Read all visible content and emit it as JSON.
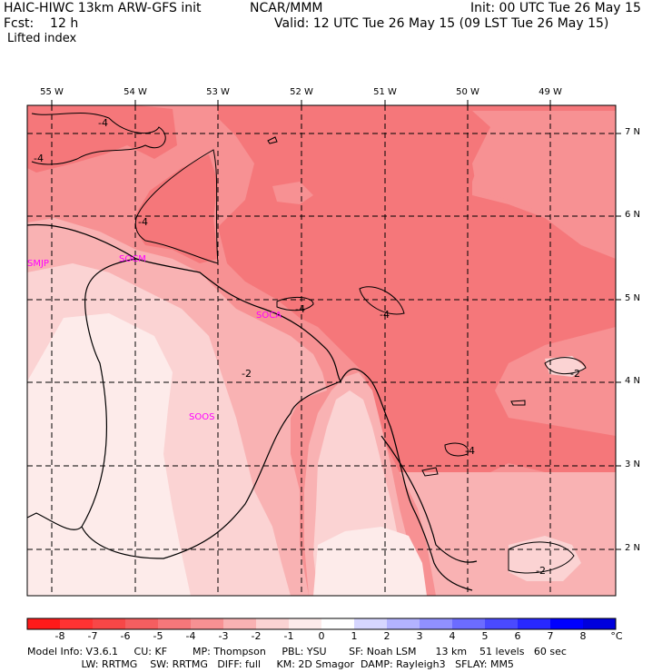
{
  "header": {
    "model": "HAIC-HIWC 13km ARW-GFS init",
    "org": "NCAR/MMM",
    "init": "Init: 00 UTC Tue 26 May 15",
    "fcst": "Fcst:    12 h",
    "valid": "Valid: 12 UTC Tue 26 May 15 (09 LST Tue 26 May 15)",
    "field": "Lifted index"
  },
  "map": {
    "lon_labels": [
      "55 W",
      "54 W",
      "53 W",
      "52 W",
      "51 W",
      "50 W",
      "49 W"
    ],
    "lat_labels": [
      "7 N",
      "6 N",
      "5 N",
      "4 N",
      "3 N",
      "2 N"
    ],
    "stations": [
      "SMJP",
      "SOCM",
      "SOCA",
      "SOOS"
    ],
    "contour_labels": [
      "-4",
      "-4",
      "-4",
      "-4",
      "-4",
      "-4",
      "-2",
      "-2",
      "-2"
    ],
    "colors": {
      "li_m4": "#f5777a",
      "li_m3": "#f79193",
      "li_m2": "#f9b2b3",
      "li_m1": "#fbd3d3",
      "li_0": "#fdebea",
      "station": "#ff00ff"
    }
  },
  "colorbar": {
    "labels": [
      "-8",
      "-7",
      "-6",
      "-5",
      "-4",
      "-3",
      "-2",
      "-1",
      "0",
      "1",
      "2",
      "3",
      "4",
      "5",
      "6",
      "7",
      "8"
    ],
    "unit": "°C",
    "colors": [
      "#ff1a1a",
      "#ff3333",
      "#f74747",
      "#f45e60",
      "#f5777a",
      "#f79193",
      "#f9b2b3",
      "#fbd3d3",
      "#fdebea",
      "#ffffff",
      "#d6d6ff",
      "#b3b3ff",
      "#9090ff",
      "#6c6cff",
      "#4a4aff",
      "#2828ff",
      "#0000ff",
      "#0000dd"
    ]
  },
  "footer": {
    "line1": "Model Info: V3.6.1     CU: KF        MP: Thompson     PBL: YSU       SF: Noah LSM      13 km    51 levels   60 sec",
    "line2": "                 LW: RRTMG    SW: RRTMG   DIFF: full     KM: 2D Smagor  DAMP: Rayleigh3   SFLAY: MM5"
  }
}
